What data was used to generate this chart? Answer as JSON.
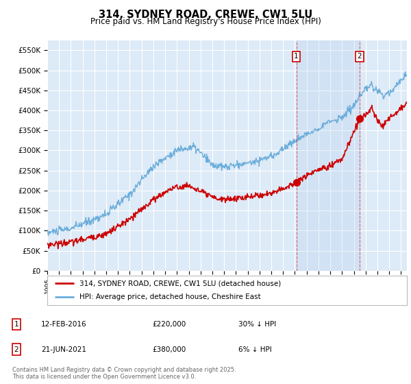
{
  "title": "314, SYDNEY ROAD, CREWE, CW1 5LU",
  "subtitle": "Price paid vs. HM Land Registry's House Price Index (HPI)",
  "ylabel_ticks": [
    "£0",
    "£50K",
    "£100K",
    "£150K",
    "£200K",
    "£250K",
    "£300K",
    "£350K",
    "£400K",
    "£450K",
    "£500K",
    "£550K"
  ],
  "ytick_values": [
    0,
    50000,
    100000,
    150000,
    200000,
    250000,
    300000,
    350000,
    400000,
    450000,
    500000,
    550000
  ],
  "xlim_start": 1995,
  "xlim_end": 2025.5,
  "ylim_min": 0,
  "ylim_max": 575000,
  "hpi_color": "#6aadda",
  "price_color": "#cc0000",
  "bg_color": "#ddeaf7",
  "grid_color": "#ffffff",
  "transaction1": {
    "date": "12-FEB-2016",
    "price": 220000,
    "hpi_diff": "30% ↓ HPI",
    "label": "1",
    "x": 2016.12
  },
  "transaction2": {
    "date": "21-JUN-2021",
    "price": 380000,
    "hpi_diff": "6% ↓ HPI",
    "label": "2",
    "x": 2021.47
  },
  "legend_label_red": "314, SYDNEY ROAD, CREWE, CW1 5LU (detached house)",
  "legend_label_blue": "HPI: Average price, detached house, Cheshire East",
  "footnote": "Contains HM Land Registry data © Crown copyright and database right 2025.\nThis data is licensed under the Open Government Licence v3.0.",
  "vline_color": "#dd4444",
  "shade_color": "#ddeaf7",
  "box_edge_color": "#cc0000"
}
